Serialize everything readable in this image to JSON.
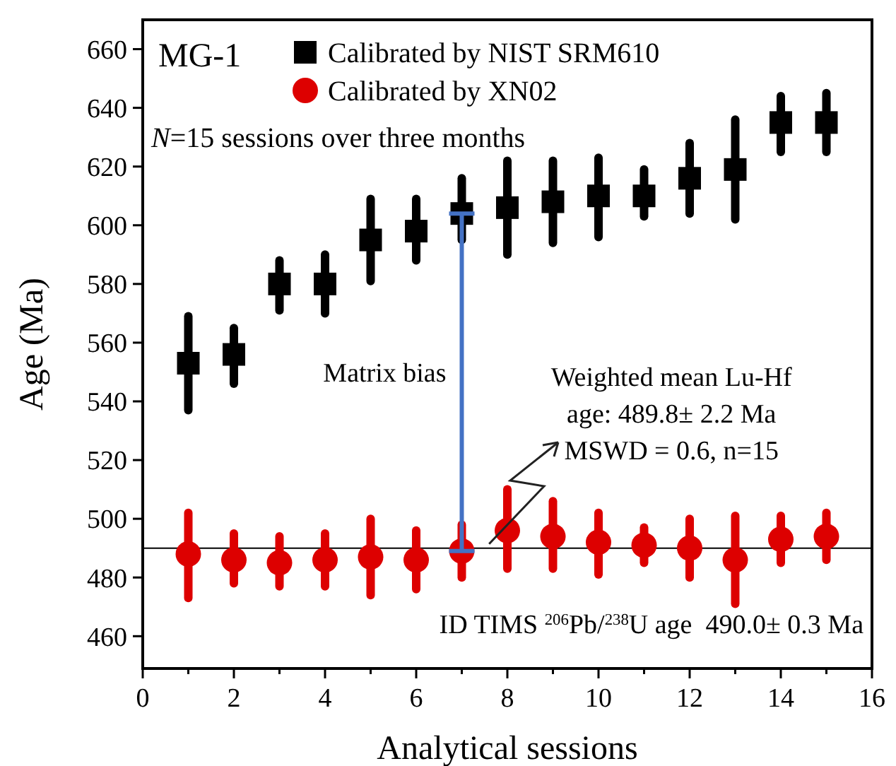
{
  "chart_data": {
    "type": "scatter",
    "xlabel": "Analytical sessions",
    "ylabel": "Age (Ma)",
    "x": [
      1,
      2,
      3,
      4,
      5,
      6,
      7,
      8,
      9,
      10,
      11,
      12,
      13,
      14,
      15
    ],
    "xlim": [
      0,
      16
    ],
    "xticks": [
      0,
      2,
      4,
      6,
      8,
      10,
      12,
      14,
      16
    ],
    "ylim": [
      449,
      670
    ],
    "yticks": [
      460,
      480,
      500,
      520,
      540,
      560,
      580,
      600,
      620,
      640,
      660
    ],
    "grid": false,
    "legend": "top left",
    "series": [
      {
        "name": "Calibrated by NIST SRM610",
        "color": "#000000",
        "marker": "square",
        "values": [
          553,
          556,
          580,
          580,
          595,
          598,
          604,
          606,
          608,
          610,
          610,
          616,
          619,
          635,
          635
        ],
        "errors": [
          [
            537,
            569
          ],
          [
            546,
            565
          ],
          [
            571,
            588
          ],
          [
            570,
            590
          ],
          [
            581,
            609
          ],
          [
            588,
            609
          ],
          [
            595,
            616
          ],
          [
            590,
            622
          ],
          [
            594,
            622
          ],
          [
            596,
            623
          ],
          [
            603,
            619
          ],
          [
            604,
            628
          ],
          [
            602,
            636
          ],
          [
            625,
            644
          ],
          [
            625,
            645
          ]
        ]
      },
      {
        "name": "Calibrated by XN02",
        "color": "#dd0000",
        "marker": "circle",
        "values": [
          488,
          486,
          485,
          486,
          487,
          486,
          489,
          496,
          494,
          492,
          491,
          490,
          486,
          493,
          494
        ],
        "errors": [
          [
            473,
            502
          ],
          [
            478,
            495
          ],
          [
            477,
            494
          ],
          [
            477,
            495
          ],
          [
            474,
            500
          ],
          [
            476,
            496
          ],
          [
            480,
            498
          ],
          [
            483,
            510
          ],
          [
            483,
            506
          ],
          [
            481,
            502
          ],
          [
            485,
            497
          ],
          [
            480,
            500
          ],
          [
            471,
            501
          ],
          [
            485,
            501
          ],
          [
            486,
            502
          ]
        ]
      }
    ],
    "ref_lines": [
      {
        "axis": "y",
        "value": 490,
        "color": "#000000"
      }
    ],
    "annotations": [
      "MG-1",
      "N=15 sessions over three months",
      "Matrix bias",
      "Weighted mean Lu-Hf",
      {
        "text": "age: 489.8± 2.2 Ma",
        "x": 7.6,
        "y": 490
      },
      "MSWD = 0.6, n=15",
      "ID TIMS $^{206}$Pb/$^{238}$U age  490.0± 0.3 Ma"
    ]
  }
}
